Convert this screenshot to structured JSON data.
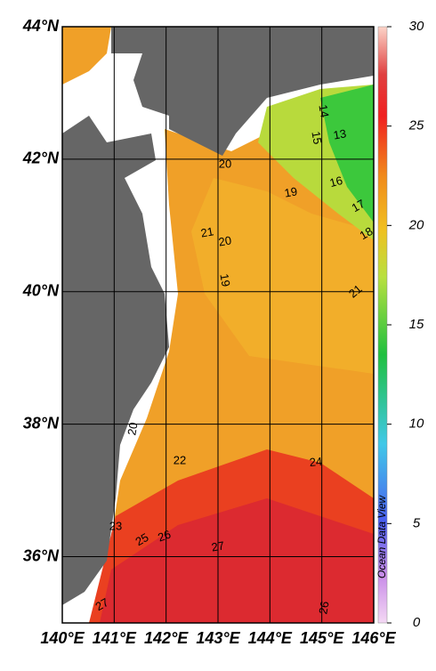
{
  "map": {
    "lat_labels": [
      {
        "value": 44,
        "label": "44°N"
      },
      {
        "value": 42,
        "label": "42°N"
      },
      {
        "value": 40,
        "label": "40°N"
      },
      {
        "value": 38,
        "label": "38°N"
      },
      {
        "value": 36,
        "label": "36°N"
      }
    ],
    "lon_labels": [
      {
        "value": 140,
        "label": "140°E"
      },
      {
        "value": 141,
        "label": "141°E"
      },
      {
        "value": 142,
        "label": "142°E"
      },
      {
        "value": 143,
        "label": "143°E"
      },
      {
        "value": 144,
        "label": "144°E"
      },
      {
        "value": 145,
        "label": "145°E"
      },
      {
        "value": 146,
        "label": "146°E"
      }
    ],
    "lat_range": [
      35,
      44
    ],
    "lon_range": [
      140,
      146
    ],
    "colorbar": {
      "range": [
        0,
        30
      ],
      "ticks": [
        0,
        5,
        10,
        15,
        20,
        25,
        30
      ]
    },
    "contour_labels": [
      14,
      13,
      15,
      20,
      19,
      16,
      17,
      18,
      21,
      20,
      19,
      21,
      20,
      22,
      24,
      23,
      25,
      26,
      27,
      27,
      26
    ],
    "watermark": "Ocean Data View"
  }
}
